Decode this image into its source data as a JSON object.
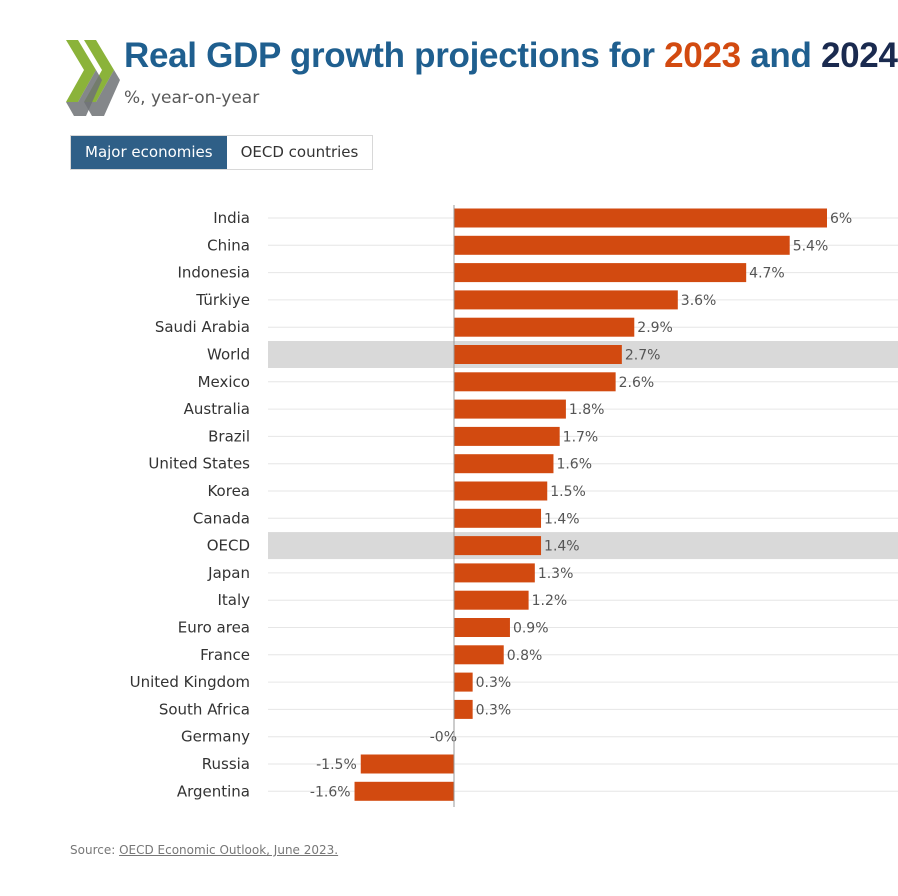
{
  "header": {
    "title_prefix": "Real GDP growth projections for ",
    "year1": "2023",
    "and": " and ",
    "year2": "2024",
    "subtitle": "%, year-on-year"
  },
  "tabs": [
    {
      "label": "Major economies",
      "active": true
    },
    {
      "label": "OECD countries",
      "active": false
    }
  ],
  "colors": {
    "bar": "#d24a10",
    "highlight_row": "#d9d9d9",
    "title": "#1f5f8f",
    "year1": "#d24a10",
    "year2": "#1a2a4f",
    "tab_active": "#2f5f87"
  },
  "chart_data": {
    "type": "bar",
    "orientation": "horizontal",
    "categories": [
      "India",
      "China",
      "Indonesia",
      "Türkiye",
      "Saudi Arabia",
      "World",
      "Mexico",
      "Australia",
      "Brazil",
      "United States",
      "Korea",
      "Canada",
      "OECD",
      "Japan",
      "Italy",
      "Euro area",
      "France",
      "United Kingdom",
      "South Africa",
      "Germany",
      "Russia",
      "Argentina"
    ],
    "values": [
      6,
      5.4,
      4.7,
      3.6,
      2.9,
      2.7,
      2.6,
      1.8,
      1.7,
      1.6,
      1.5,
      1.4,
      1.4,
      1.3,
      1.2,
      0.9,
      0.8,
      0.3,
      0.3,
      -0.0,
      -1.5,
      -1.6
    ],
    "labels": [
      "6%",
      "5.4%",
      "4.7%",
      "3.6%",
      "2.9%",
      "2.7%",
      "2.6%",
      "1.8%",
      "1.7%",
      "1.6%",
      "1.5%",
      "1.4%",
      "1.4%",
      "1.3%",
      "1.2%",
      "0.9%",
      "0.8%",
      "0.3%",
      "0.3%",
      "-0%",
      "-1.5%",
      "-1.6%"
    ],
    "highlighted": [
      "World",
      "OECD"
    ],
    "xlim": [
      -1.6,
      6
    ],
    "grid": true
  },
  "source": {
    "prefix": "Source: ",
    "link_text": "OECD Economic Outlook, June 2023."
  }
}
